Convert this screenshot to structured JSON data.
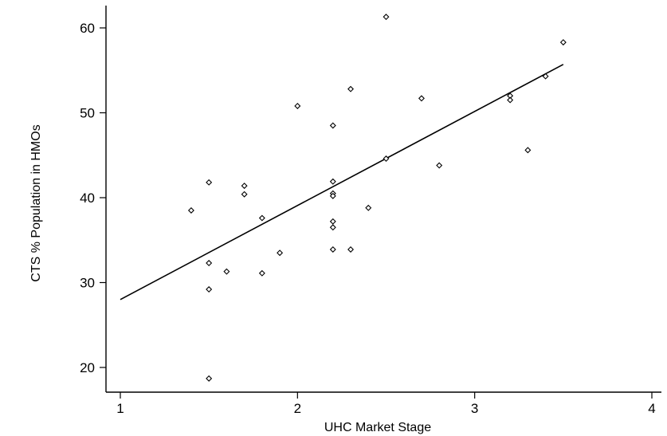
{
  "chart_data": {
    "type": "scatter",
    "title": "",
    "xlabel": "UHC Market Stage",
    "ylabel": "CTS % Population in HMOs",
    "xlim": [
      1,
      4
    ],
    "ylim": [
      17,
      63
    ],
    "xticks": [
      1,
      2,
      3,
      4
    ],
    "yticks": [
      20,
      30,
      40,
      50,
      60
    ],
    "grid": false,
    "legend": "none",
    "points": [
      {
        "x": 1.4,
        "y": 38.5
      },
      {
        "x": 1.5,
        "y": 41.8
      },
      {
        "x": 1.5,
        "y": 32.3
      },
      {
        "x": 1.5,
        "y": 29.2
      },
      {
        "x": 1.5,
        "y": 18.7
      },
      {
        "x": 1.6,
        "y": 31.3
      },
      {
        "x": 1.7,
        "y": 41.4
      },
      {
        "x": 1.7,
        "y": 40.4
      },
      {
        "x": 1.8,
        "y": 37.6
      },
      {
        "x": 1.8,
        "y": 31.1
      },
      {
        "x": 1.9,
        "y": 33.5
      },
      {
        "x": 2.0,
        "y": 50.8
      },
      {
        "x": 2.2,
        "y": 48.5
      },
      {
        "x": 2.2,
        "y": 41.9
      },
      {
        "x": 2.2,
        "y": 40.5
      },
      {
        "x": 2.2,
        "y": 40.2
      },
      {
        "x": 2.2,
        "y": 37.2
      },
      {
        "x": 2.2,
        "y": 36.5
      },
      {
        "x": 2.2,
        "y": 33.9
      },
      {
        "x": 2.3,
        "y": 52.8
      },
      {
        "x": 2.3,
        "y": 33.9
      },
      {
        "x": 2.4,
        "y": 38.8
      },
      {
        "x": 2.5,
        "y": 61.3
      },
      {
        "x": 2.5,
        "y": 44.6
      },
      {
        "x": 2.7,
        "y": 51.7
      },
      {
        "x": 2.8,
        "y": 43.8
      },
      {
        "x": 3.2,
        "y": 52.0
      },
      {
        "x": 3.2,
        "y": 51.5
      },
      {
        "x": 3.3,
        "y": 45.6
      },
      {
        "x": 3.4,
        "y": 54.3
      },
      {
        "x": 3.5,
        "y": 58.3
      }
    ],
    "fit_line": {
      "x": [
        1.0,
        3.5
      ],
      "y": [
        28.0,
        55.7
      ]
    }
  }
}
